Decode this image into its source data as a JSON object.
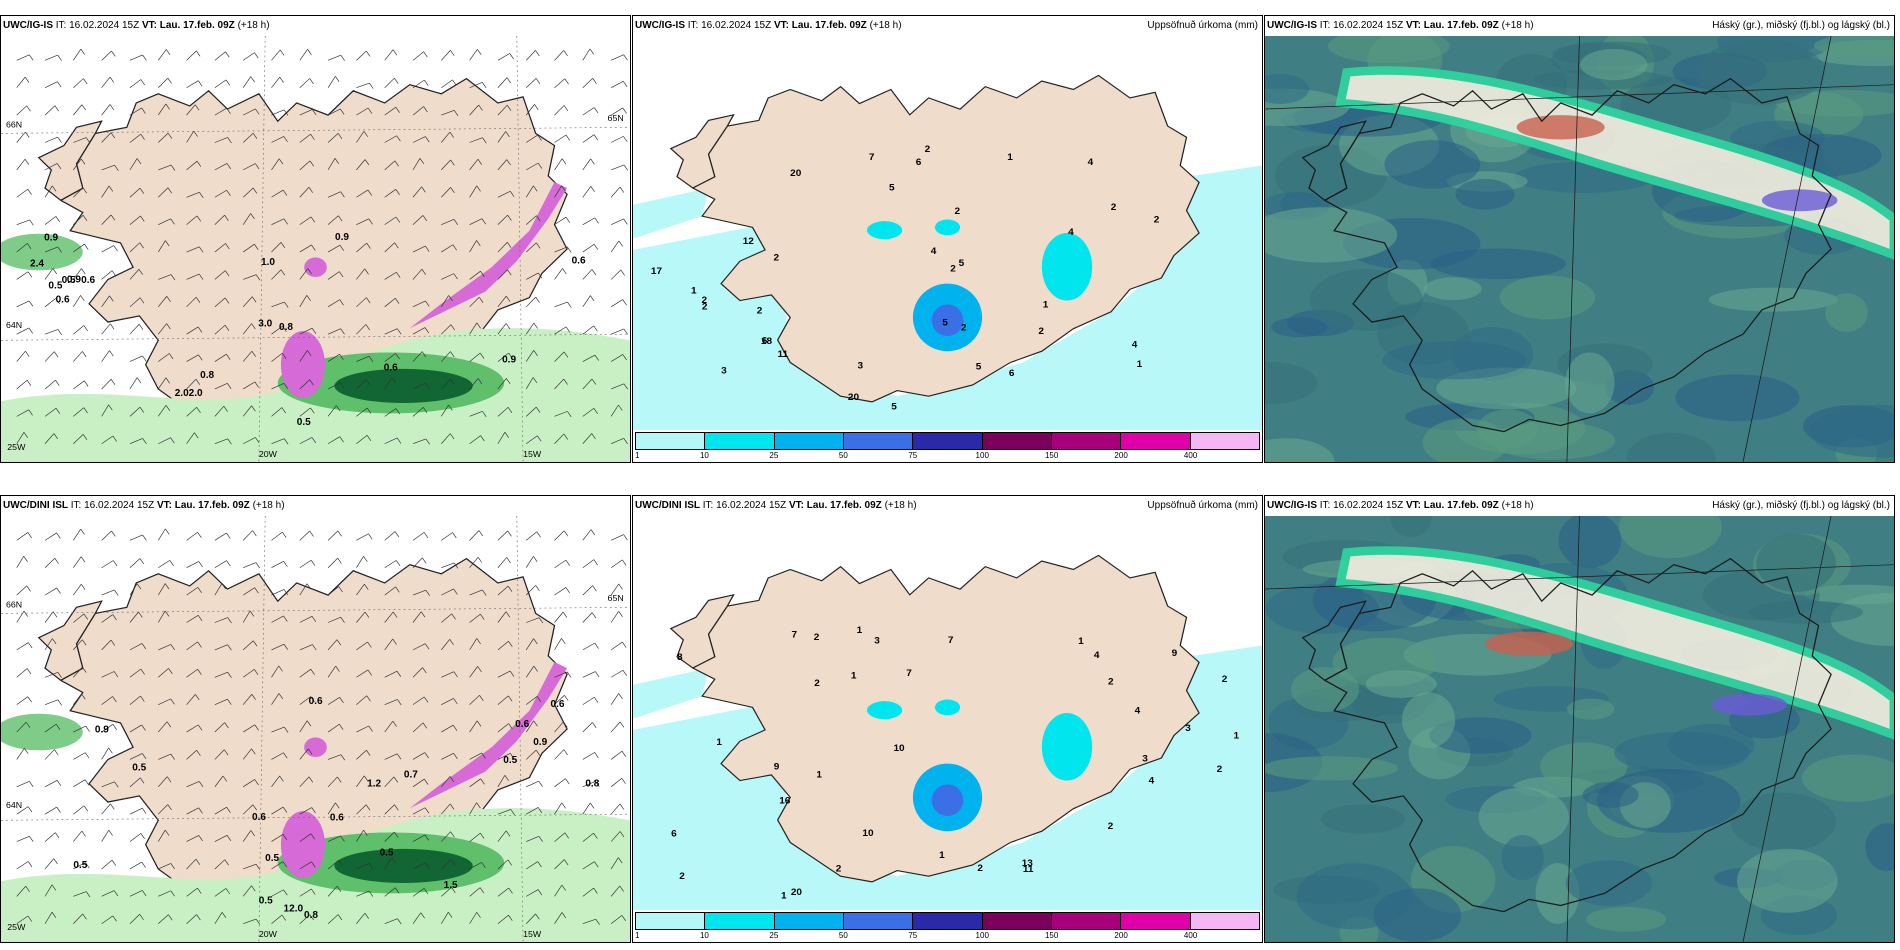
{
  "panels": [
    {
      "model": "UWC/IG-IS",
      "it_label": "IT:",
      "it_value": "16.02.2024 15Z",
      "vt_label": "VT:",
      "vt_value": "Lau. 17.feb. 09Z",
      "lead": "(+18 h)",
      "right_title": "",
      "lat_labels": [
        "66N",
        "64N",
        "65N"
      ],
      "lon_labels": [
        "25W",
        "20W",
        "15W"
      ],
      "values": [
        "0.9",
        "0.6",
        "0.6",
        "0.9",
        "2.4",
        "0.8",
        "0.5",
        "0.5",
        "0.9",
        "0.6",
        "0.5",
        "0.6",
        "2.02.0",
        "3.0",
        "0.9",
        "0.8",
        "1.0"
      ]
    },
    {
      "model": "UWC/IG-IS",
      "it_label": "IT:",
      "it_value": "16.02.2024 15Z",
      "vt_label": "VT:",
      "vt_value": "Lau. 17.feb. 09Z",
      "lead": "(+18 h)",
      "right_title": "Uppsöfnuð úrkoma (mm)",
      "values": [
        "3",
        "4",
        "20",
        "2",
        "2",
        "2",
        "2",
        "6",
        "2",
        "4",
        "1",
        "2",
        "2",
        "2",
        "5",
        "7",
        "1",
        "17",
        "18",
        "20",
        "6",
        "6",
        "5",
        "5",
        "4",
        "3",
        "2",
        "1",
        "2",
        "1",
        "12",
        "11",
        "5",
        "5",
        "4",
        "2"
      ],
      "colorbar": {
        "colors": [
          "#b3f7f7",
          "#00e5ee",
          "#00b2ee",
          "#3a6fe6",
          "#2a2aa8",
          "#7a0059",
          "#a8007a",
          "#e000a8",
          "#f4b6f4"
        ],
        "ticks": [
          "1",
          "10",
          "25",
          "50",
          "75",
          "100",
          "150",
          "200",
          "400"
        ]
      }
    },
    {
      "model": "UWC/IG-IS",
      "it_label": "IT:",
      "it_value": "16.02.2024 15Z",
      "vt_label": "VT:",
      "vt_value": "Lau. 17.feb. 09Z",
      "lead": "(+18 h)",
      "right_title": "Háský (gr.), miðský (fj.bl.) og lágský (bl.)"
    },
    {
      "model": "UWC/DINI ISL",
      "it_label": "IT:",
      "it_value": "16.02.2024 15Z",
      "vt_label": "VT:",
      "vt_value": "Lau. 17.feb. 09Z",
      "lead": "(+18 h)",
      "right_title": "",
      "lat_labels": [
        "66N",
        "64N",
        "65N"
      ],
      "lon_labels": [
        "25W",
        "20W",
        "15W"
      ],
      "values": [
        "0.6",
        "0.5",
        "0.8",
        "0.5",
        "0.5",
        "0.5",
        "0.5",
        "0.6",
        "1.2",
        "0.6",
        "0.7",
        "0.9",
        "0.6",
        "0.6",
        "0.5",
        "1.5",
        "12.0",
        "0.9",
        "0.8"
      ]
    },
    {
      "model": "UWC/DINI ISL",
      "it_label": "IT:",
      "it_value": "16.02.2024 15Z",
      "vt_label": "VT:",
      "vt_value": "Lau. 17.feb. 09Z",
      "lead": "(+18 h)",
      "right_title": "Uppsöfnuð úrkoma (mm)",
      "values": [
        "4",
        "1",
        "20",
        "1",
        "1",
        "1",
        "2",
        "2",
        "2",
        "3",
        "9",
        "1",
        "1",
        "10",
        "7",
        "16",
        "8",
        "6",
        "9",
        "11",
        "7",
        "13",
        "10",
        "7",
        "4",
        "4",
        "2",
        "2",
        "2",
        "1",
        "3",
        "3",
        "2",
        "2",
        "1",
        "2"
      ],
      "colorbar": {
        "colors": [
          "#b3f7f7",
          "#00e5ee",
          "#00b2ee",
          "#3a6fe6",
          "#2a2aa8",
          "#7a0059",
          "#a8007a",
          "#e000a8",
          "#f4b6f4"
        ],
        "ticks": [
          "1",
          "10",
          "25",
          "50",
          "75",
          "100",
          "150",
          "200",
          "400"
        ]
      }
    },
    {
      "model": "UWC/IG-IS",
      "it_label": "IT:",
      "it_value": "16.02.2024 15Z",
      "vt_label": "VT:",
      "vt_value": "Lau. 17.feb. 09Z",
      "lead": "(+18 h)",
      "right_title": "Háský (gr.), miðský (fj.bl.) og lágský (bl.)"
    }
  ],
  "colors": {
    "land": "#efdccb",
    "sea_precip": "#b9f8f8",
    "green_light": "#c9f0c4",
    "green_mid": "#5fbf6a",
    "green_dark": "#116633",
    "purple": "#d66ad6",
    "cloud_base": "#3f7f83",
    "cloud_high": "#2fd7a0"
  }
}
